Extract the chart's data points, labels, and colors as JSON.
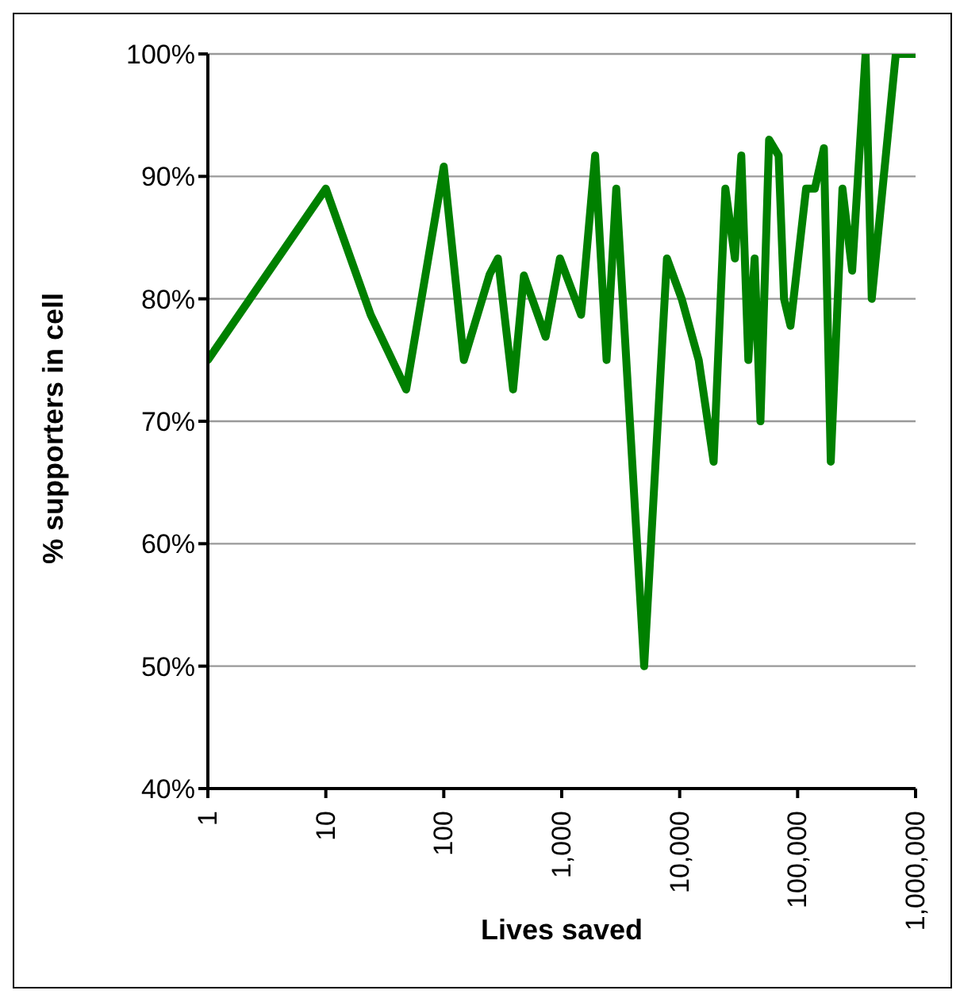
{
  "chart_data": {
    "type": "line",
    "xlabel": "Lives saved",
    "ylabel": "% supporters in cell",
    "log": "x",
    "x": [
      1,
      10,
      24,
      48,
      100,
      148,
      245,
      288,
      387,
      478,
      730,
      966,
      1460,
      1920,
      2400,
      2900,
      5000,
      7800,
      10400,
      14500,
      19400,
      24400,
      29400,
      33300,
      38200,
      43200,
      48400,
      57300,
      69000,
      76700,
      87000,
      118000,
      140000,
      167000,
      191000,
      240000,
      290000,
      377000,
      425000,
      680000,
      1000000
    ],
    "series": [
      {
        "color": "#008000",
        "values": [
          75,
          89,
          78.7,
          72.6,
          90.8,
          75,
          82,
          83.3,
          72.6,
          81.9,
          76.9,
          83.3,
          78.7,
          91.7,
          75,
          89,
          50,
          83.3,
          80,
          75,
          66.7,
          89,
          83.3,
          91.7,
          75,
          83.3,
          70,
          93,
          91.7,
          80,
          77.8,
          89,
          89,
          92.3,
          66.7,
          89,
          82.3,
          100,
          80,
          100,
          100
        ]
      }
    ],
    "xlim": [
      1,
      1000000
    ],
    "xticks": [
      1,
      10,
      100,
      {
        "value": 1000,
        "label": "1,000"
      },
      {
        "value": 10000,
        "label": "10,000"
      },
      {
        "value": 100000,
        "label": "100,000"
      },
      {
        "value": 1000000,
        "label": "1,000,000"
      }
    ],
    "ylim": [
      40,
      100
    ],
    "yticks": [
      {
        "value": 40,
        "label": "40%"
      },
      {
        "value": 50,
        "label": "50%"
      },
      {
        "value": 60,
        "label": "60%"
      },
      {
        "value": 70,
        "label": "70%"
      },
      {
        "value": 80,
        "label": "80%"
      },
      {
        "value": 90,
        "label": "90%"
      },
      {
        "value": 100,
        "label": "100%"
      }
    ],
    "grid": "y",
    "marker": "none",
    "line_style": "solid",
    "legend": false
  }
}
